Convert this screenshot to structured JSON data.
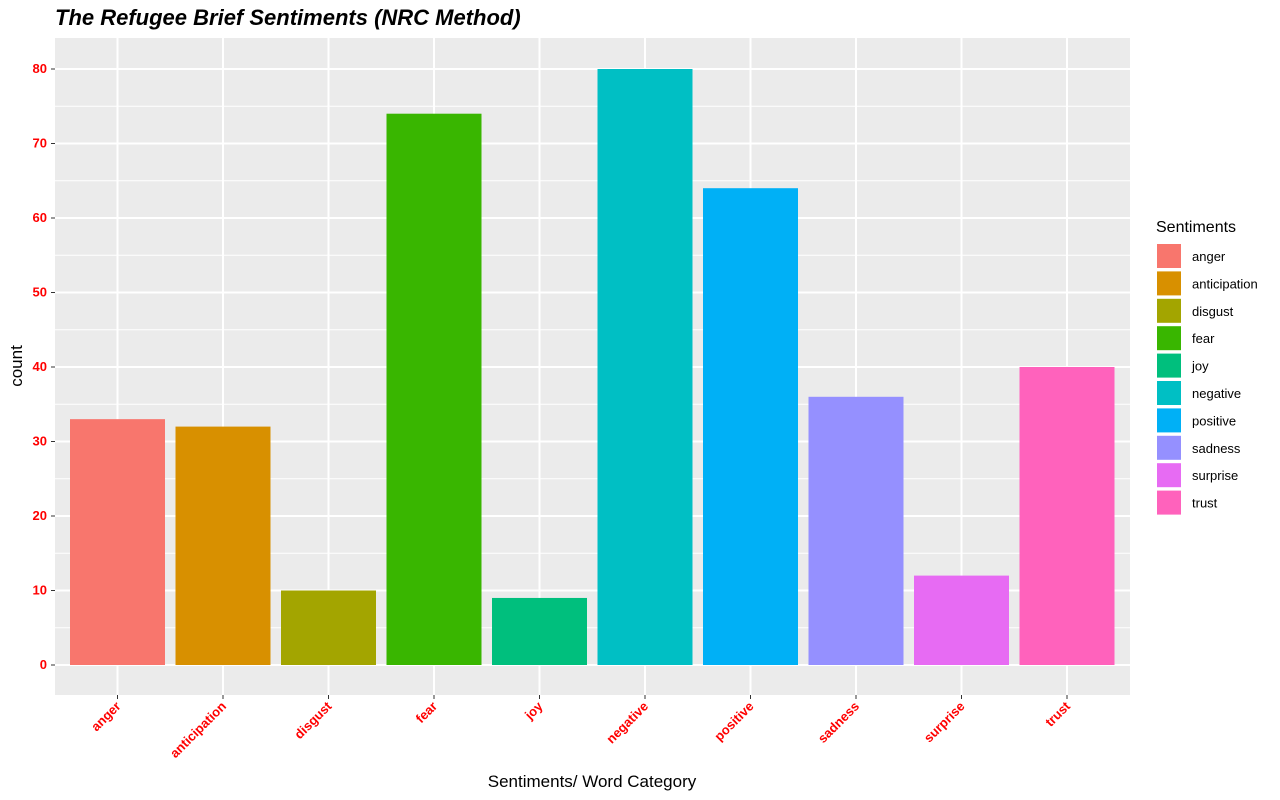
{
  "chart_data": {
    "type": "bar",
    "title": "The Refugee Brief Sentiments (NRC Method)",
    "xlabel": "Sentiments/ Word Category",
    "ylabel": "count",
    "categories": [
      "anger",
      "anticipation",
      "disgust",
      "fear",
      "joy",
      "negative",
      "positive",
      "sadness",
      "surprise",
      "trust"
    ],
    "values": [
      33,
      32,
      10,
      74,
      9,
      80,
      64,
      36,
      12,
      40
    ],
    "colors": [
      "#F8766D",
      "#D89000",
      "#A3A500",
      "#39B600",
      "#00BF7D",
      "#00BFC4",
      "#00B0F6",
      "#9590FF",
      "#E76BF3",
      "#FF62BC"
    ],
    "yticks": [
      0,
      10,
      20,
      30,
      40,
      50,
      60,
      70,
      80
    ],
    "ylim": [
      0,
      84
    ],
    "grid": true,
    "legend": {
      "title": "Sentiments",
      "placement": "right"
    },
    "panel_color": "#EBEBEB",
    "grid_color": "#FFFFFF",
    "tick_label_color": "#FF0000"
  }
}
